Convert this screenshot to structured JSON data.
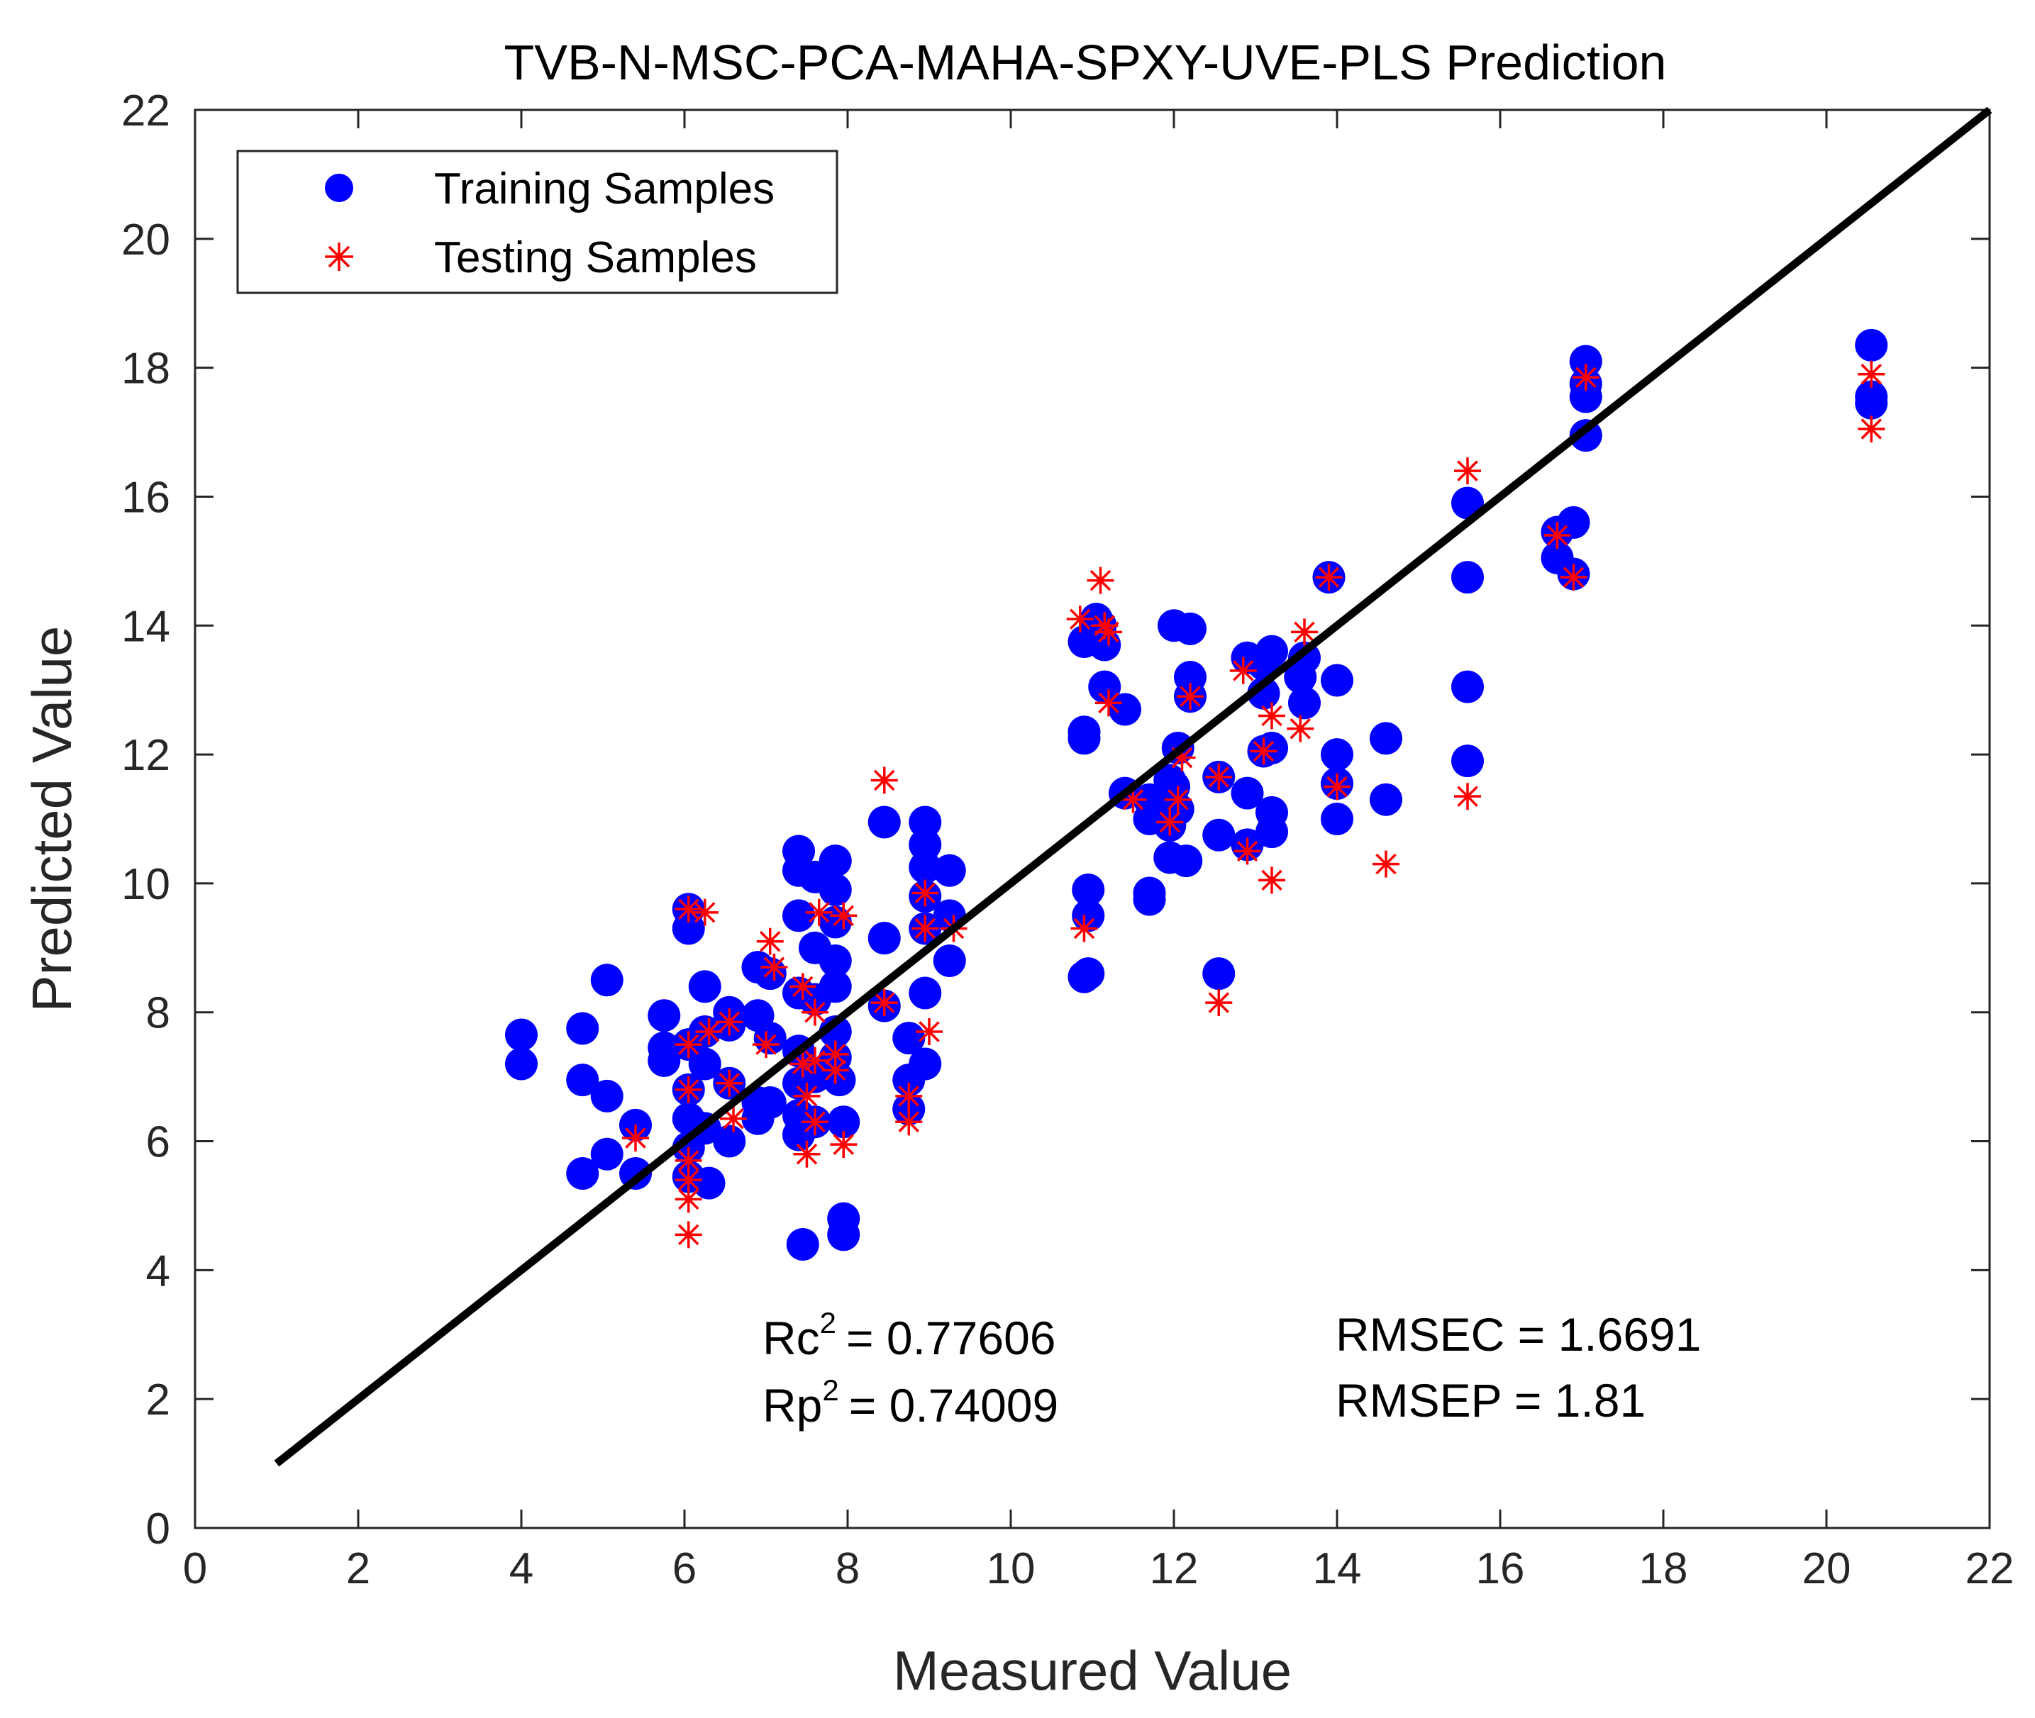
{
  "chart_data": {
    "type": "scatter",
    "title": "TVB-N-MSC-PCA-MAHA-SPXY-UVE-PLS Prediction",
    "xlabel": "Measured Value",
    "ylabel": "Predicted Value",
    "xlim": [
      0,
      22
    ],
    "ylim": [
      0,
      22
    ],
    "xticks": [
      "0",
      "2",
      "4",
      "6",
      "8",
      "10",
      "12",
      "14",
      "16",
      "18",
      "20",
      "22"
    ],
    "yticks": [
      "0",
      "2",
      "4",
      "6",
      "8",
      "10",
      "12",
      "14",
      "16",
      "18",
      "20",
      "22"
    ],
    "grid": false,
    "legend_position": "top-left",
    "colors": {
      "training": "#0000ff",
      "testing": "#ff0000",
      "fit_line": "#000000"
    },
    "series": [
      {
        "name": "Training Samples",
        "marker": "filled-circle",
        "points": [
          [
            4.0,
            7.65
          ],
          [
            4.0,
            7.2
          ],
          [
            4.75,
            7.75
          ],
          [
            4.75,
            6.95
          ],
          [
            4.75,
            5.5
          ],
          [
            5.05,
            8.5
          ],
          [
            5.05,
            6.7
          ],
          [
            5.05,
            5.8
          ],
          [
            5.4,
            6.25
          ],
          [
            5.4,
            5.5
          ],
          [
            5.75,
            7.95
          ],
          [
            5.75,
            7.45
          ],
          [
            5.75,
            7.25
          ],
          [
            6.05,
            9.6
          ],
          [
            6.05,
            9.3
          ],
          [
            6.05,
            7.5
          ],
          [
            6.05,
            6.8
          ],
          [
            6.05,
            6.35
          ],
          [
            6.05,
            5.9
          ],
          [
            6.05,
            5.45
          ],
          [
            6.25,
            8.4
          ],
          [
            6.25,
            7.7
          ],
          [
            6.25,
            7.2
          ],
          [
            6.25,
            6.2
          ],
          [
            6.3,
            5.35
          ],
          [
            6.55,
            8.0
          ],
          [
            6.55,
            7.8
          ],
          [
            6.55,
            6.9
          ],
          [
            6.55,
            6.0
          ],
          [
            6.9,
            8.7
          ],
          [
            6.9,
            7.95
          ],
          [
            6.9,
            6.6
          ],
          [
            6.9,
            6.35
          ],
          [
            7.05,
            8.6
          ],
          [
            7.05,
            7.6
          ],
          [
            7.05,
            6.6
          ],
          [
            7.4,
            10.5
          ],
          [
            7.4,
            10.2
          ],
          [
            7.4,
            9.5
          ],
          [
            7.4,
            8.3
          ],
          [
            7.4,
            7.4
          ],
          [
            7.4,
            6.9
          ],
          [
            7.4,
            6.4
          ],
          [
            7.4,
            6.1
          ],
          [
            7.45,
            4.4
          ],
          [
            7.6,
            10.1
          ],
          [
            7.6,
            9.0
          ],
          [
            7.6,
            8.2
          ],
          [
            7.6,
            7.0
          ],
          [
            7.6,
            6.3
          ],
          [
            7.85,
            10.35
          ],
          [
            7.85,
            9.9
          ],
          [
            7.85,
            9.4
          ],
          [
            7.85,
            8.8
          ],
          [
            7.85,
            8.4
          ],
          [
            7.85,
            7.7
          ],
          [
            7.85,
            7.3
          ],
          [
            7.9,
            6.95
          ],
          [
            7.95,
            6.3
          ],
          [
            7.95,
            4.8
          ],
          [
            7.95,
            4.55
          ],
          [
            8.45,
            10.95
          ],
          [
            8.45,
            9.15
          ],
          [
            8.45,
            8.1
          ],
          [
            8.75,
            7.6
          ],
          [
            8.75,
            6.95
          ],
          [
            8.75,
            6.5
          ],
          [
            8.95,
            10.95
          ],
          [
            8.95,
            10.6
          ],
          [
            8.95,
            10.25
          ],
          [
            8.95,
            9.8
          ],
          [
            8.95,
            9.3
          ],
          [
            8.95,
            8.3
          ],
          [
            8.95,
            7.2
          ],
          [
            9.25,
            10.2
          ],
          [
            9.25,
            9.5
          ],
          [
            9.25,
            8.8
          ],
          [
            10.9,
            13.75
          ],
          [
            10.9,
            12.35
          ],
          [
            10.9,
            12.25
          ],
          [
            10.9,
            8.55
          ],
          [
            10.95,
            9.9
          ],
          [
            10.95,
            9.5
          ],
          [
            10.95,
            8.6
          ],
          [
            11.05,
            14.1
          ],
          [
            11.1,
            14.0
          ],
          [
            11.15,
            13.7
          ],
          [
            11.15,
            13.05
          ],
          [
            11.4,
            12.7
          ],
          [
            11.4,
            11.4
          ],
          [
            11.7,
            11.3
          ],
          [
            11.7,
            11.0
          ],
          [
            11.7,
            9.85
          ],
          [
            11.7,
            9.75
          ],
          [
            11.95,
            11.6
          ],
          [
            11.95,
            10.9
          ],
          [
            11.95,
            10.4
          ],
          [
            12.0,
            14.0
          ],
          [
            12.0,
            11.5
          ],
          [
            12.05,
            12.1
          ],
          [
            12.05,
            11.15
          ],
          [
            12.15,
            10.35
          ],
          [
            12.2,
            13.95
          ],
          [
            12.2,
            13.2
          ],
          [
            12.2,
            12.9
          ],
          [
            12.55,
            11.65
          ],
          [
            12.55,
            10.75
          ],
          [
            12.55,
            8.6
          ],
          [
            12.9,
            13.5
          ],
          [
            12.9,
            11.4
          ],
          [
            12.9,
            10.6
          ],
          [
            13.1,
            13.4
          ],
          [
            13.1,
            12.95
          ],
          [
            13.1,
            12.05
          ],
          [
            13.2,
            13.6
          ],
          [
            13.2,
            12.1
          ],
          [
            13.2,
            11.1
          ],
          [
            13.2,
            10.8
          ],
          [
            13.55,
            13.2
          ],
          [
            13.6,
            12.8
          ],
          [
            13.6,
            13.5
          ],
          [
            13.9,
            14.75
          ],
          [
            14.0,
            13.15
          ],
          [
            14.0,
            12.0
          ],
          [
            14.0,
            11.55
          ],
          [
            14.0,
            11.0
          ],
          [
            14.6,
            12.25
          ],
          [
            14.6,
            11.3
          ],
          [
            15.6,
            15.9
          ],
          [
            15.6,
            14.75
          ],
          [
            15.6,
            13.05
          ],
          [
            15.6,
            11.9
          ],
          [
            16.7,
            15.45
          ],
          [
            16.7,
            15.05
          ],
          [
            16.9,
            15.6
          ],
          [
            16.9,
            14.8
          ],
          [
            17.05,
            18.1
          ],
          [
            17.05,
            17.75
          ],
          [
            17.05,
            17.55
          ],
          [
            17.05,
            16.95
          ],
          [
            20.55,
            18.35
          ],
          [
            20.55,
            17.55
          ],
          [
            20.55,
            17.45
          ]
        ]
      },
      {
        "name": "Testing Samples",
        "marker": "asterisk",
        "points": [
          [
            5.4,
            6.05
          ],
          [
            6.05,
            9.6
          ],
          [
            6.05,
            7.5
          ],
          [
            6.05,
            6.8
          ],
          [
            6.05,
            5.7
          ],
          [
            6.05,
            5.4
          ],
          [
            6.05,
            5.1
          ],
          [
            6.05,
            4.55
          ],
          [
            6.25,
            9.55
          ],
          [
            6.3,
            7.7
          ],
          [
            6.55,
            7.85
          ],
          [
            6.55,
            6.9
          ],
          [
            6.6,
            6.35
          ],
          [
            7.0,
            7.5
          ],
          [
            7.05,
            9.1
          ],
          [
            7.1,
            8.7
          ],
          [
            7.45,
            8.4
          ],
          [
            7.45,
            7.2
          ],
          [
            7.5,
            6.7
          ],
          [
            7.5,
            5.8
          ],
          [
            7.6,
            8.0
          ],
          [
            7.6,
            7.25
          ],
          [
            7.6,
            6.3
          ],
          [
            7.65,
            9.55
          ],
          [
            7.85,
            7.35
          ],
          [
            7.85,
            7.1
          ],
          [
            7.95,
            9.5
          ],
          [
            7.95,
            5.95
          ],
          [
            8.45,
            11.6
          ],
          [
            8.45,
            8.15
          ],
          [
            8.75,
            6.7
          ],
          [
            8.75,
            6.3
          ],
          [
            8.95,
            9.85
          ],
          [
            8.95,
            9.3
          ],
          [
            9.0,
            7.7
          ],
          [
            9.3,
            9.3
          ],
          [
            10.85,
            14.1
          ],
          [
            10.9,
            9.3
          ],
          [
            11.1,
            14.7
          ],
          [
            11.15,
            14.0
          ],
          [
            11.2,
            13.9
          ],
          [
            11.2,
            12.8
          ],
          [
            11.5,
            11.3
          ],
          [
            11.95,
            10.95
          ],
          [
            12.05,
            11.3
          ],
          [
            12.1,
            11.95
          ],
          [
            12.2,
            12.9
          ],
          [
            12.55,
            11.65
          ],
          [
            12.55,
            8.15
          ],
          [
            12.85,
            13.3
          ],
          [
            12.9,
            10.5
          ],
          [
            13.1,
            12.05
          ],
          [
            13.2,
            12.6
          ],
          [
            13.2,
            10.05
          ],
          [
            13.55,
            12.4
          ],
          [
            13.6,
            13.9
          ],
          [
            13.9,
            14.75
          ],
          [
            14.0,
            11.5
          ],
          [
            14.6,
            10.3
          ],
          [
            15.6,
            16.4
          ],
          [
            15.6,
            11.35
          ],
          [
            16.7,
            15.4
          ],
          [
            16.9,
            14.75
          ],
          [
            17.05,
            17.85
          ],
          [
            20.55,
            17.9
          ],
          [
            20.55,
            17.05
          ]
        ]
      }
    ],
    "fit_line": {
      "from": [
        1,
        1
      ],
      "to": [
        22,
        22
      ]
    },
    "legend": {
      "training": "Training Samples",
      "testing": "Testing Samples"
    },
    "annotations": {
      "rc_label": "Rc",
      "rc_value": "= 0.77606",
      "rp_label": "Rp",
      "rp_value": "= 0.74009",
      "power": "2",
      "rmsec": "RMSEC = 1.6691",
      "rmsep": "RMSEP = 1.81"
    }
  }
}
